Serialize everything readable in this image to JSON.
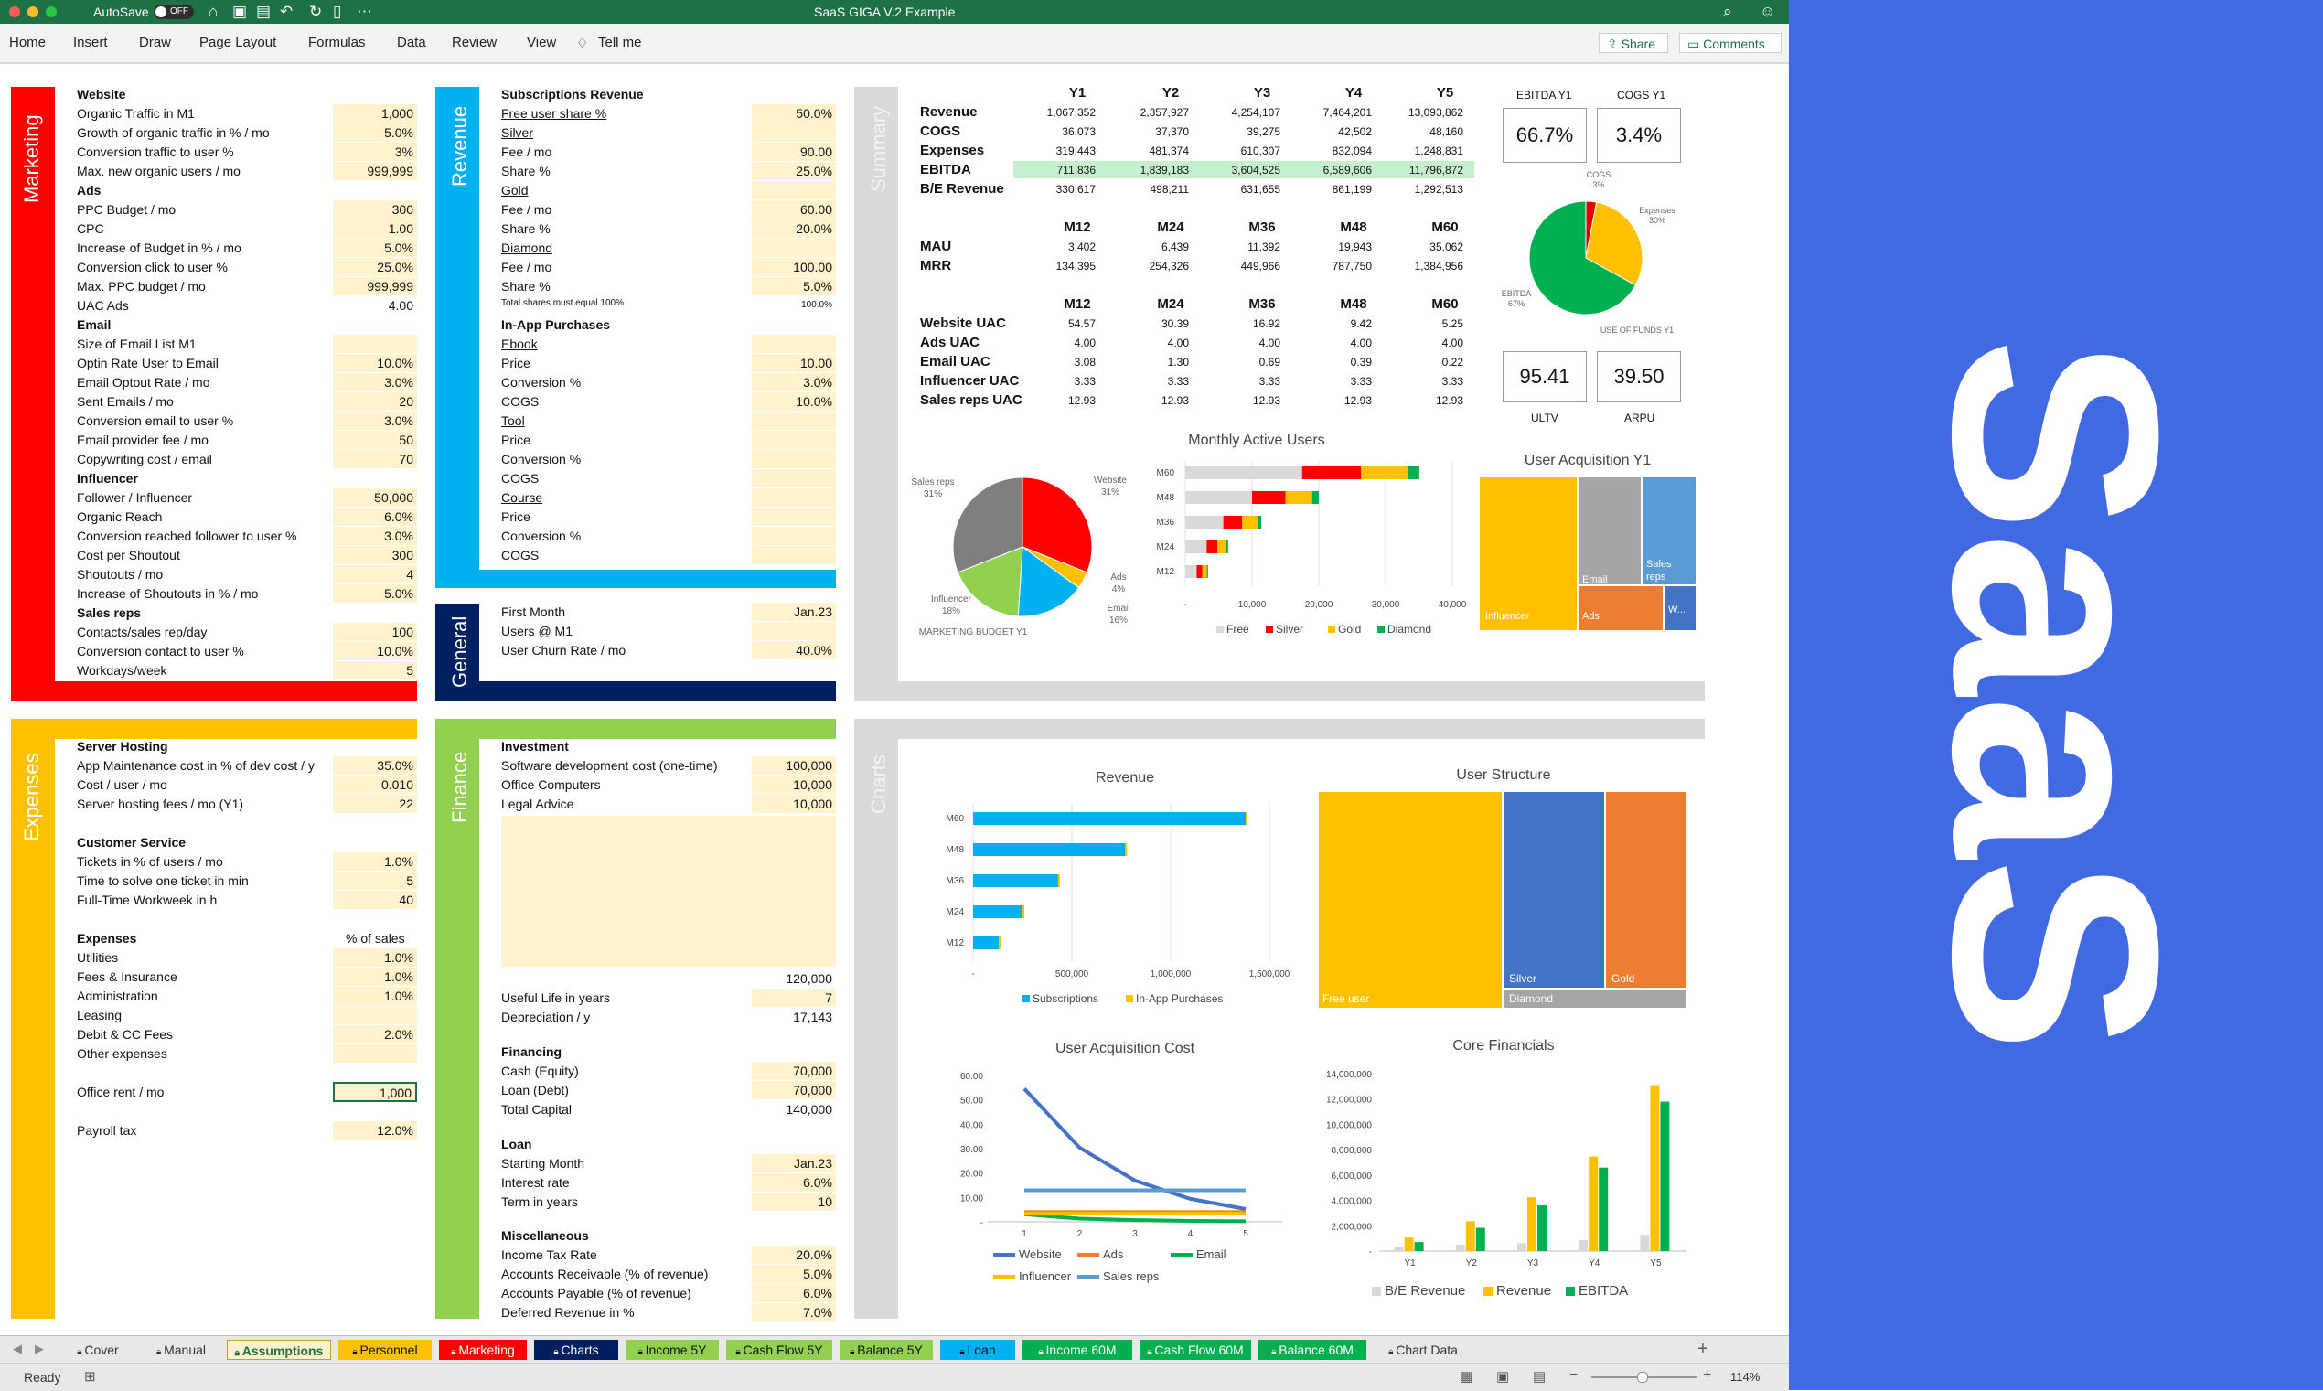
{
  "window": {
    "autosave_label": "AutoSave",
    "autosave_state": "OFF",
    "title": "SaaS GIGA V.2 Example"
  },
  "ribbon": {
    "menus": [
      "Home",
      "Insert",
      "Draw",
      "Page Layout",
      "Formulas",
      "Data",
      "Review",
      "View",
      "Tell me"
    ],
    "share_label": "Share",
    "comments_label": "Comments"
  },
  "sections": {
    "marketing": "Marketing",
    "revenue": "Revenue",
    "general": "General",
    "summary": "Summary",
    "expenses": "Expenses",
    "finance": "Finance",
    "charts": "Charts"
  },
  "marketing": {
    "website_title": "Website",
    "ads_title": "Ads",
    "email_title": "Email",
    "influencer_title": "Influencer",
    "salesreps_title": "Sales reps",
    "rows": [
      {
        "label": "Organic Traffic in M1",
        "value": "1,000"
      },
      {
        "label": "Growth of organic traffic in % / mo",
        "value": "5.0%"
      },
      {
        "label": "Conversion traffic to user %",
        "value": "3%"
      },
      {
        "label": "Max. new organic users / mo",
        "value": "999,999"
      },
      {
        "label": "PPC Budget / mo",
        "value": "300"
      },
      {
        "label": "CPC",
        "value": "1.00"
      },
      {
        "label": "Increase of Budget in % / mo",
        "value": "5.0%"
      },
      {
        "label": "Conversion click to user %",
        "value": "25.0%"
      },
      {
        "label": "Max. PPC budget / mo",
        "value": "999,999"
      },
      {
        "label": "UAC Ads",
        "value": "4.00"
      },
      {
        "label": "Size of Email List M1",
        "value": ""
      },
      {
        "label": "Optin Rate User to Email",
        "value": "10.0%"
      },
      {
        "label": "Email Optout Rate / mo",
        "value": "3.0%"
      },
      {
        "label": "Sent Emails / mo",
        "value": "20"
      },
      {
        "label": "Conversion email to user %",
        "value": "3.0%"
      },
      {
        "label": "Email provider fee / mo",
        "value": "50"
      },
      {
        "label": "Copywriting cost / email",
        "value": "70"
      },
      {
        "label": "Follower / Influencer",
        "value": "50,000"
      },
      {
        "label": "Organic Reach",
        "value": "6.0%"
      },
      {
        "label": "Conversion reached follower to user %",
        "value": "3.0%"
      },
      {
        "label": "Cost per Shoutout",
        "value": "300"
      },
      {
        "label": "Shoutouts / mo",
        "value": "4"
      },
      {
        "label": "Increase of Shoutouts in % / mo",
        "value": "5.0%"
      },
      {
        "label": "Contacts/sales rep/day",
        "value": "100"
      },
      {
        "label": "Conversion contact to user %",
        "value": "10.0%"
      },
      {
        "label": "Workdays/week",
        "value": "5"
      }
    ]
  },
  "revenue": {
    "title": "Subscriptions Revenue",
    "free_user_share_label": "Free user share %",
    "free_user_share_value": "50.0%",
    "silver": "Silver",
    "gold": "Gold",
    "diamond": "Diamond",
    "fee_label": "Fee / mo",
    "share_label": "Share %",
    "silver_fee": "90.00",
    "silver_share": "25.0%",
    "gold_fee": "60.00",
    "gold_share": "20.0%",
    "diamond_fee": "100.00",
    "diamond_share": "5.0%",
    "total_shares_note": "Total shares must equal 100%",
    "total_shares_value": "100.0%",
    "inapp_title": "In-App Purchases",
    "ebook": "Ebook",
    "tool": "Tool",
    "course": "Course",
    "price_label": "Price",
    "conversion_label": "Conversion %",
    "cogs_label": "COGS",
    "ebook_price": "10.00",
    "ebook_conversion": "3.0%",
    "ebook_cogs": "10.0%"
  },
  "general": {
    "first_month_label": "First Month",
    "first_month_value": "Jan.23",
    "users_m1_label": "Users @ M1",
    "churn_label": "User Churn Rate / mo",
    "churn_value": "40.0%"
  },
  "summary": {
    "years": [
      "Y1",
      "Y2",
      "Y3",
      "Y4",
      "Y5"
    ],
    "rows": [
      {
        "label": "Revenue",
        "values": [
          "1,067,352",
          "2,357,927",
          "4,254,107",
          "7,464,201",
          "13,093,862"
        ]
      },
      {
        "label": "COGS",
        "values": [
          "36,073",
          "37,370",
          "39,275",
          "42,502",
          "48,160"
        ]
      },
      {
        "label": "Expenses",
        "values": [
          "319,443",
          "481,374",
          "610,307",
          "832,094",
          "1,248,831"
        ]
      },
      {
        "label": "EBITDA",
        "values": [
          "711,836",
          "1,839,183",
          "3,604,525",
          "6,589,606",
          "11,796,872"
        ]
      },
      {
        "label": "B/E Revenue",
        "values": [
          "330,617",
          "498,211",
          "631,655",
          "861,199",
          "1,292,513"
        ]
      }
    ],
    "months": [
      "M12",
      "M24",
      "M36",
      "M48",
      "M60"
    ],
    "mau_rows": [
      {
        "label": "MAU",
        "values": [
          "3,402",
          "6,439",
          "11,392",
          "19,943",
          "35,062"
        ]
      },
      {
        "label": "MRR",
        "values": [
          "134,395",
          "254,326",
          "449,966",
          "787,750",
          "1,384,956"
        ]
      }
    ],
    "uac_rows": [
      {
        "label": "Website UAC",
        "values": [
          "54.57",
          "30.39",
          "16.92",
          "9.42",
          "5.25"
        ]
      },
      {
        "label": "Ads UAC",
        "values": [
          "4.00",
          "4.00",
          "4.00",
          "4.00",
          "4.00"
        ]
      },
      {
        "label": "Email UAC",
        "values": [
          "3.08",
          "1.30",
          "0.69",
          "0.39",
          "0.22"
        ]
      },
      {
        "label": "Influencer UAC",
        "values": [
          "3.33",
          "3.33",
          "3.33",
          "3.33",
          "3.33"
        ]
      },
      {
        "label": "Sales reps UAC",
        "values": [
          "12.93",
          "12.93",
          "12.93",
          "12.93",
          "12.93"
        ]
      }
    ],
    "ebitda_y1_label": "EBITDA Y1",
    "ebitda_y1_value": "66.7%",
    "cogs_y1_label": "COGS Y1",
    "cogs_y1_value": "3.4%",
    "ultv_label": "ULTV",
    "ultv_value": "95.41",
    "arpu_label": "ARPU",
    "arpu_value": "39.50",
    "use_of_funds_label": "USE OF FUNDS Y1",
    "marketing_budget_label": "MARKETING BUDGET Y1"
  },
  "expenses": {
    "server_title": "Server Hosting",
    "server_rows": [
      {
        "label": "App Maintenance cost in % of dev cost / y",
        "value": "35.0%"
      },
      {
        "label": "Cost / user / mo",
        "value": "0.010"
      },
      {
        "label": "Server hosting fees / mo (Y1)",
        "value": "22"
      }
    ],
    "cs_title": "Customer Service",
    "cs_rows": [
      {
        "label": "Tickets in % of users / mo",
        "value": "1.0%"
      },
      {
        "label": "Time to solve one ticket in min",
        "value": "5"
      },
      {
        "label": "Full-Time Workweek in h",
        "value": "40"
      }
    ],
    "exp_title": "Expenses",
    "exp_sub": "% of sales",
    "exp_rows": [
      {
        "label": "Utilities",
        "value": "1.0%"
      },
      {
        "label": "Fees & Insurance",
        "value": "1.0%"
      },
      {
        "label": "Administration",
        "value": "1.0%"
      },
      {
        "label": "Leasing",
        "value": ""
      },
      {
        "label": "Debit & CC Fees",
        "value": "2.0%"
      },
      {
        "label": "Other expenses",
        "value": ""
      }
    ],
    "office_rent_label": "Office rent / mo",
    "office_rent_value": "1,000",
    "payroll_tax_label": "Payroll tax",
    "payroll_tax_value": "12.0%"
  },
  "finance": {
    "investment_title": "Investment",
    "investment_rows": [
      {
        "label": "Software development cost (one-time)",
        "value": "100,000"
      },
      {
        "label": "Office Computers",
        "value": "10,000"
      },
      {
        "label": "Legal Advice",
        "value": "10,000"
      }
    ],
    "investment_total": "120,000",
    "useful_life_label": "Useful Life in years",
    "useful_life_value": "7",
    "depreciation_label": "Depreciation / y",
    "depreciation_value": "17,143",
    "financing_title": "Financing",
    "financing_rows": [
      {
        "label": "Cash (Equity)",
        "value": "70,000"
      },
      {
        "label": "Loan (Debt)",
        "value": "70,000"
      }
    ],
    "total_capital_label": "Total Capital",
    "total_capital_value": "140,000",
    "loan_title": "Loan",
    "loan_rows": [
      {
        "label": "Starting Month",
        "value": "Jan.23"
      },
      {
        "label": "Interest rate",
        "value": "6.0%"
      },
      {
        "label": "Term in years",
        "value": "10"
      }
    ],
    "misc_title": "Miscellaneous",
    "misc_rows": [
      {
        "label": "Income Tax Rate",
        "value": "20.0%"
      },
      {
        "label": "Accounts Receivable (% of revenue)",
        "value": "5.0%"
      },
      {
        "label": "Accounts Payable (% of revenue)",
        "value": "6.0%"
      },
      {
        "label": "Deferred Revenue in %",
        "value": "7.0%"
      }
    ]
  },
  "chart_data": [
    {
      "type": "pie",
      "name": "use_of_funds",
      "title": "USE OF FUNDS Y1",
      "labels": [
        "COGS",
        "Expenses",
        "EBITDA"
      ],
      "values": [
        3,
        30,
        67
      ],
      "colors": [
        "#e00000",
        "#ffc000",
        "#00b050"
      ]
    },
    {
      "type": "pie",
      "name": "marketing_budget",
      "title": "MARKETING BUDGET Y1",
      "labels": [
        "Website",
        "Ads",
        "Email",
        "Influencer",
        "Sales reps"
      ],
      "values": [
        31,
        4,
        16,
        18,
        31
      ],
      "colors": [
        "#ff0000",
        "#ffc000",
        "#00b0f0",
        "#92d050",
        "#7f7f7f"
      ]
    },
    {
      "type": "bar",
      "name": "monthly_active_users",
      "title": "Monthly Active Users",
      "categories": [
        "M60",
        "M48",
        "M36",
        "M24",
        "M12"
      ],
      "series": [
        {
          "name": "Free",
          "values": [
            17500,
            10000,
            5700,
            3200,
            1700
          ],
          "color": "#d9d9d9"
        },
        {
          "name": "Silver",
          "values": [
            8800,
            5000,
            2800,
            1600,
            850
          ],
          "color": "#ff0000"
        },
        {
          "name": "Gold",
          "values": [
            7000,
            4000,
            2300,
            1300,
            680
          ],
          "color": "#ffc000"
        },
        {
          "name": "Diamond",
          "values": [
            1750,
            1000,
            570,
            320,
            170
          ],
          "color": "#00b050"
        }
      ],
      "xticks": [
        "-",
        "10,000",
        "20,000",
        "30,000",
        "40,000"
      ],
      "xlim": [
        0,
        40000
      ]
    },
    {
      "type": "treemap",
      "name": "user_acquisition",
      "title": "User Acquisition Y1",
      "labels": [
        "Influencer",
        "Email",
        "Ads",
        "Sales reps",
        "W..."
      ],
      "colors": [
        "#ffc000",
        "#a5a5a5",
        "#ed7d31",
        "#5b9bd5",
        "#4472c4"
      ]
    },
    {
      "type": "bar",
      "name": "revenue_chart",
      "title": "Revenue",
      "categories": [
        "M60",
        "M48",
        "M36",
        "M24",
        "M12"
      ],
      "series": [
        {
          "name": "Subscriptions",
          "values": [
            1380000,
            770000,
            430000,
            250000,
            130000
          ],
          "color": "#00b0f0"
        },
        {
          "name": "In-App Purchases",
          "values": [
            8000,
            5000,
            3000,
            2000,
            1000
          ],
          "color": "#ffc000"
        }
      ],
      "xticks": [
        "-",
        "500,000",
        "1,000,000",
        "1,500,000"
      ],
      "xlim": [
        0,
        1500000
      ]
    },
    {
      "type": "treemap",
      "name": "user_structure",
      "title": "User Structure",
      "labels": [
        "Free user",
        "Silver",
        "Gold",
        "Diamond"
      ],
      "colors": [
        "#ffc000",
        "#4472c4",
        "#ed7d31",
        "#a5a5a5"
      ]
    },
    {
      "type": "line",
      "name": "user_acquisition_cost",
      "title": "User Acquisition Cost",
      "x": [
        1,
        2,
        3,
        4,
        5
      ],
      "ylim": [
        0,
        60
      ],
      "yticks": [
        "60.00",
        "50.00",
        "40.00",
        "30.00",
        "20.00",
        "10.00",
        "-"
      ],
      "series": [
        {
          "name": "Website",
          "values": [
            54.57,
            30.39,
            16.92,
            9.42,
            5.25
          ],
          "color": "#4472c4"
        },
        {
          "name": "Ads",
          "values": [
            4.0,
            4.0,
            4.0,
            4.0,
            4.0
          ],
          "color": "#ed7d31"
        },
        {
          "name": "Email",
          "values": [
            3.08,
            1.3,
            0.69,
            0.39,
            0.22
          ],
          "color": "#00b050"
        },
        {
          "name": "Influencer",
          "values": [
            3.33,
            3.33,
            3.33,
            3.33,
            3.33
          ],
          "color": "#ffc000"
        },
        {
          "name": "Sales reps",
          "values": [
            12.93,
            12.93,
            12.93,
            12.93,
            12.93
          ],
          "color": "#5b9bd5"
        }
      ]
    },
    {
      "type": "bar",
      "name": "core_financials",
      "title": "Core Financials",
      "categories": [
        "Y1",
        "Y2",
        "Y3",
        "Y4",
        "Y5"
      ],
      "ylim": [
        0,
        14000000
      ],
      "yticks": [
        "14,000,000",
        "12,000,000",
        "10,000,000",
        "8,000,000",
        "6,000,000",
        "4,000,000",
        "2,000,000",
        "-"
      ],
      "series": [
        {
          "name": "B/E Revenue",
          "values": [
            330617,
            498211,
            631655,
            861199,
            1292513
          ],
          "color": "#d9d9d9"
        },
        {
          "name": "Revenue",
          "values": [
            1067352,
            2357927,
            4254107,
            7464201,
            13093862
          ],
          "color": "#ffc000"
        },
        {
          "name": "EBITDA",
          "values": [
            711836,
            1839183,
            3604525,
            6589606,
            11796872
          ],
          "color": "#00b050"
        }
      ]
    }
  ],
  "tabs": [
    {
      "label": "Cover",
      "bg": "#e8e8e8",
      "fg": "#333"
    },
    {
      "label": "Manual",
      "bg": "#e8e8e8",
      "fg": "#333"
    },
    {
      "label": "Assumptions",
      "bg": "#fff2cc",
      "fg": "#1e7145"
    },
    {
      "label": "Personnel",
      "bg": "#ffc000",
      "fg": "#111"
    },
    {
      "label": "Marketing",
      "bg": "#ff0000",
      "fg": "#fff"
    },
    {
      "label": "Charts",
      "bg": "#002060",
      "fg": "#fff"
    },
    {
      "label": "Income 5Y",
      "bg": "#92d050",
      "fg": "#111"
    },
    {
      "label": "Cash Flow 5Y",
      "bg": "#92d050",
      "fg": "#111"
    },
    {
      "label": "Balance 5Y",
      "bg": "#92d050",
      "fg": "#111"
    },
    {
      "label": "Loan",
      "bg": "#00b0f0",
      "fg": "#111"
    },
    {
      "label": "Income 60M",
      "bg": "#00b050",
      "fg": "#fff"
    },
    {
      "label": "Cash Flow 60M",
      "bg": "#00b050",
      "fg": "#fff"
    },
    {
      "label": "Balance 60M",
      "bg": "#00b050",
      "fg": "#fff"
    },
    {
      "label": "Chart Data",
      "bg": "#e8e8e8",
      "fg": "#333"
    }
  ],
  "status": {
    "ready": "Ready",
    "zoom": "114%"
  },
  "brand": {
    "text": "SaaS"
  }
}
